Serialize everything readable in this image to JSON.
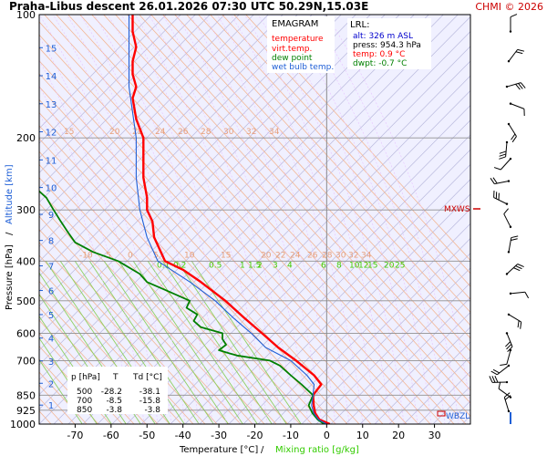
{
  "header": {
    "title": "Praha-Libus   descent   26.01.2026 07:30 UTC  50.29N,15.03E",
    "copyright": "CHMI © 2026"
  },
  "legend": {
    "heading": "EMAGRAM",
    "items": [
      {
        "label": "temperature",
        "color": "#ff0000"
      },
      {
        "label": "virt.temp.",
        "color": "#ff0000"
      },
      {
        "label": "dew point",
        "color": "#008000"
      },
      {
        "label": "wet bulb temp.",
        "color": "#1f5fd6"
      }
    ]
  },
  "lrl": {
    "heading": "LRL:",
    "lines": [
      {
        "text": "alt: 326 m ASL",
        "color": "#0000cc"
      },
      {
        "text": "press: 954.3 hPa",
        "color": "#000000"
      },
      {
        "text": "temp: 0.9 °C",
        "color": "#ff0000"
      },
      {
        "text": "dwpt: -0.7 °C",
        "color": "#008000"
      }
    ]
  },
  "table": {
    "header": [
      "p [hPa]",
      "T",
      "Td [°C]"
    ],
    "rows": [
      [
        "500",
        "-28.2",
        "-38.1"
      ],
      [
        "700",
        "-8.5",
        "-15.8"
      ],
      [
        "850",
        "-3.8",
        "-3.8"
      ]
    ]
  },
  "markers": {
    "mxws": "MXWS",
    "wbzl": "WBZL"
  },
  "chart_data": {
    "type": "line",
    "xlabel": "Temperature [°C]",
    "xlabel_sep": "/",
    "xlabel2": "Mixing ratio [g/kg]",
    "ylabel": "Pressure [hPa]",
    "ylabel_sep": "/",
    "ylabel2": "Altitude [km]",
    "xlim": [
      -80,
      40
    ],
    "ylim": [
      1000,
      100
    ],
    "y_log_scale": true,
    "x_ticks": [
      -70,
      -60,
      -50,
      -40,
      -30,
      -20,
      -10,
      0,
      10,
      20,
      30
    ],
    "y_ticks": [
      100,
      200,
      300,
      400,
      500,
      600,
      700,
      850,
      925,
      1000
    ],
    "altitude_ticks_km": [
      1,
      2,
      3,
      4,
      5,
      6,
      7,
      8,
      9,
      10,
      11,
      12,
      13,
      14,
      15
    ],
    "mixing_ratio_labels": [
      "0.1",
      "0.2",
      "0.5",
      "1",
      "1.5",
      "2",
      "3",
      "4",
      "6",
      "8",
      "10",
      "12",
      "15",
      "20",
      "25"
    ],
    "theta_labels_200": [
      "15",
      "20",
      "22",
      "24",
      "26",
      "28",
      "30",
      "32",
      "34"
    ],
    "theta_labels_400": [
      "-10",
      "-5",
      "0",
      "5",
      "10",
      "15",
      "20",
      "22",
      "24",
      "26",
      "28",
      "30",
      "32",
      "34"
    ],
    "series": [
      {
        "name": "temperature",
        "color": "#ff0000",
        "points": [
          [
            1000,
            0.9
          ],
          [
            975,
            -2.0
          ],
          [
            940,
            -3.2
          ],
          [
            900,
            -3.6
          ],
          [
            850,
            -3.8
          ],
          [
            800,
            -1.5
          ],
          [
            760,
            -3.5
          ],
          [
            700,
            -8.5
          ],
          [
            650,
            -13.5
          ],
          [
            600,
            -18.0
          ],
          [
            550,
            -23.0
          ],
          [
            500,
            -28.2
          ],
          [
            450,
            -35.0
          ],
          [
            420,
            -40.0
          ],
          [
            400,
            -45.0
          ],
          [
            350,
            -48.0
          ],
          [
            320,
            -48.5
          ],
          [
            300,
            -50.0
          ],
          [
            280,
            -50.0
          ],
          [
            250,
            -51.0
          ],
          [
            230,
            -51.0
          ],
          [
            200,
            -51.0
          ],
          [
            180,
            -53.0
          ],
          [
            160,
            -54.0
          ],
          [
            150,
            -53.0
          ],
          [
            140,
            -54.0
          ],
          [
            130,
            -54.0
          ],
          [
            120,
            -53.0
          ],
          [
            110,
            -54.0
          ],
          [
            100,
            -54.0
          ]
        ]
      },
      {
        "name": "dew point",
        "color": "#008000",
        "points": [
          [
            1000,
            -0.7
          ],
          [
            975,
            -2.5
          ],
          [
            940,
            -4.0
          ],
          [
            900,
            -5.0
          ],
          [
            850,
            -3.8
          ],
          [
            800,
            -7.0
          ],
          [
            760,
            -10.0
          ],
          [
            720,
            -13.0
          ],
          [
            700,
            -15.8
          ],
          [
            680,
            -25.0
          ],
          [
            660,
            -30.0
          ],
          [
            640,
            -28.0
          ],
          [
            620,
            -29.0
          ],
          [
            600,
            -29.0
          ],
          [
            580,
            -35.0
          ],
          [
            560,
            -37.0
          ],
          [
            540,
            -36.0
          ],
          [
            520,
            -39.0
          ],
          [
            500,
            -38.1
          ],
          [
            470,
            -45.0
          ],
          [
            450,
            -50.0
          ],
          [
            430,
            -52.0
          ],
          [
            400,
            -58.0
          ],
          [
            380,
            -65.0
          ],
          [
            360,
            -70.0
          ],
          [
            340,
            -72.0
          ],
          [
            320,
            -74.0
          ],
          [
            300,
            -76.0
          ],
          [
            280,
            -78.0
          ],
          [
            270,
            -80.0
          ]
        ]
      },
      {
        "name": "wet bulb temp.",
        "color": "#1f5fd6",
        "points": [
          [
            1000,
            0.0
          ],
          [
            975,
            -2.3
          ],
          [
            940,
            -3.6
          ],
          [
            900,
            -4.2
          ],
          [
            850,
            -3.8
          ],
          [
            800,
            -3.5
          ],
          [
            760,
            -5.5
          ],
          [
            700,
            -10.0
          ],
          [
            650,
            -17.0
          ],
          [
            600,
            -21.0
          ],
          [
            550,
            -26.0
          ],
          [
            500,
            -31.0
          ],
          [
            450,
            -38.0
          ],
          [
            400,
            -47.0
          ],
          [
            350,
            -50.0
          ],
          [
            300,
            -52.0
          ],
          [
            250,
            -53.0
          ],
          [
            200,
            -53.0
          ],
          [
            150,
            -55.0
          ],
          [
            100,
            -55.0
          ]
        ]
      }
    ]
  }
}
